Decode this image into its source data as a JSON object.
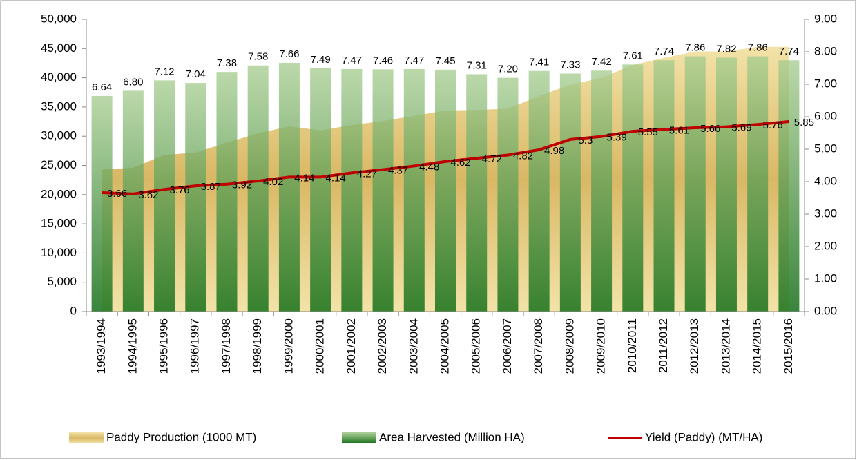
{
  "chart_data": {
    "type": "combo",
    "categories": [
      "1993/1994",
      "1994/1995",
      "1995/1996",
      "1996/1997",
      "1997/1998",
      "1998/1999",
      "1999/2000",
      "2000/2001",
      "2001/2002",
      "2002/2003",
      "2003/2004",
      "2004/2005",
      "2005/2006",
      "2006/2007",
      "2007/2008",
      "2008/2009",
      "2009/2010",
      "2010/2011",
      "2011/2012",
      "2012/2013",
      "2013/2014",
      "2014/2015",
      "2015/2016"
    ],
    "ylim": [
      0,
      50000
    ],
    "yticks": [
      0,
      {
        "value": 5000,
        "label": "5,000"
      },
      {
        "value": 10000,
        "label": "10,000"
      },
      {
        "value": 15000,
        "label": "15,000"
      },
      {
        "value": 20000,
        "label": "20,000"
      },
      {
        "value": 25000,
        "label": "25,000"
      },
      {
        "value": 30000,
        "label": "30,000"
      },
      {
        "value": 35000,
        "label": "35,000"
      },
      {
        "value": 40000,
        "label": "40,000"
      },
      {
        "value": 45000,
        "label": "45,000"
      },
      {
        "value": 50000,
        "label": "50,000"
      }
    ],
    "y2lim": [
      0,
      9
    ],
    "y2ticks": [
      {
        "value": 0,
        "label": "0.00"
      },
      {
        "value": 1,
        "label": "1.00"
      },
      {
        "value": 2,
        "label": "2.00"
      },
      {
        "value": 3,
        "label": "3.00"
      },
      {
        "value": 4,
        "label": "4.00"
      },
      {
        "value": 5,
        "label": "5.00"
      },
      {
        "value": 6,
        "label": "6.00"
      },
      {
        "value": 7,
        "label": "7.00"
      },
      {
        "value": 8,
        "label": "8.00"
      },
      {
        "value": 9,
        "label": "9.00"
      }
    ],
    "legend": "bottom",
    "series": [
      {
        "name": "Paddy Production (1000 MT)",
        "type": "area",
        "color": "#e8cd7e",
        "values": [
          24300,
          24600,
          26800,
          27200,
          28900,
          30500,
          31700,
          31000,
          31900,
          32600,
          33500,
          34400,
          34500,
          34700,
          36900,
          38800,
          40000,
          42200,
          43400,
          44500,
          44500,
          45300,
          45300
        ]
      },
      {
        "name": "Area Harvested (Million HA)",
        "type": "bar",
        "axis": "y2",
        "color": "#4e9a3c",
        "values": [
          6.64,
          6.8,
          7.12,
          7.04,
          7.38,
          7.58,
          7.66,
          7.49,
          7.47,
          7.46,
          7.47,
          7.45,
          7.31,
          7.2,
          7.41,
          7.33,
          7.42,
          7.61,
          7.74,
          7.86,
          7.82,
          7.86,
          7.74
        ],
        "value_labels": [
          "6.64",
          "6.80",
          "7.12",
          "7.04",
          "7.38",
          "7.58",
          "7.66",
          "7.49",
          "7.47",
          "7.46",
          "7.47",
          "7.45",
          "7.31",
          "7.20",
          "7.41",
          "7.33",
          "7.42",
          "7.61",
          "7.74",
          "7.86",
          "7.82",
          "7.86",
          "7.74"
        ]
      },
      {
        "name": "Yield (Paddy) (MT/HA)",
        "type": "line",
        "axis": "y2",
        "color": "#c00000",
        "values": [
          3.66,
          3.62,
          3.76,
          3.87,
          3.92,
          4.02,
          4.14,
          4.14,
          4.27,
          4.37,
          4.48,
          4.62,
          4.72,
          4.82,
          4.98,
          5.3,
          5.39,
          5.55,
          5.61,
          5.66,
          5.69,
          5.76,
          5.85
        ]
      }
    ]
  }
}
